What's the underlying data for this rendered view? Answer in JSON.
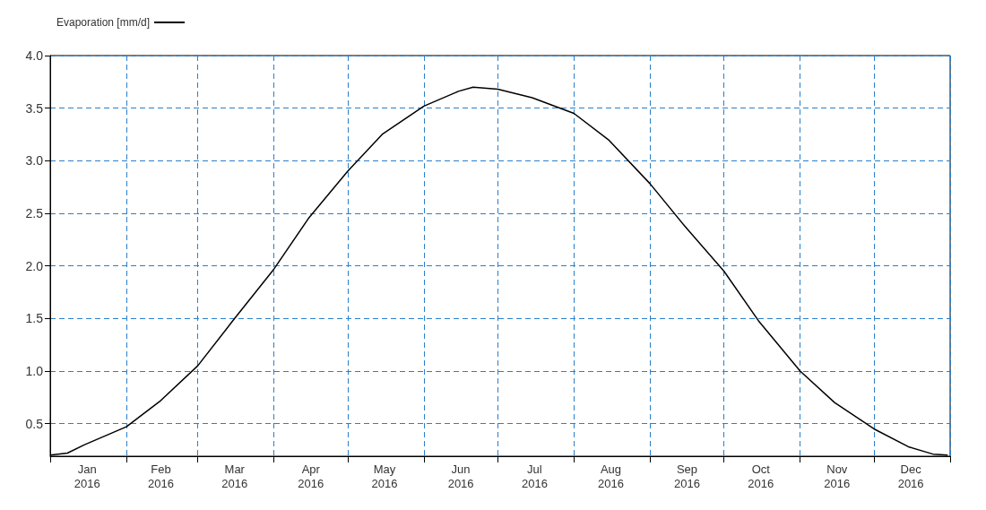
{
  "chart_data": {
    "type": "line",
    "x": [
      "2016-01-01",
      "2016-01-08",
      "2016-01-15",
      "2016-02-01",
      "2016-02-15",
      "2016-03-01",
      "2016-03-15",
      "2016-04-01",
      "2016-04-15",
      "2016-05-01",
      "2016-05-15",
      "2016-06-01",
      "2016-06-15",
      "2016-06-21",
      "2016-07-01",
      "2016-07-15",
      "2016-08-01",
      "2016-08-15",
      "2016-09-01",
      "2016-09-15",
      "2016-10-01",
      "2016-10-15",
      "2016-11-01",
      "2016-11-15",
      "2016-12-01",
      "2016-12-15",
      "2016-12-25",
      "2016-12-31"
    ],
    "series": [
      {
        "name": "Evaporation [mm/d]",
        "color": "#000000",
        "values": [
          0.2,
          0.22,
          0.3,
          0.47,
          0.72,
          1.05,
          1.47,
          1.97,
          2.45,
          2.9,
          3.25,
          3.52,
          3.66,
          3.7,
          3.68,
          3.6,
          3.45,
          3.2,
          2.78,
          2.38,
          1.95,
          1.48,
          1.0,
          0.7,
          0.45,
          0.28,
          0.21,
          0.2
        ]
      }
    ],
    "xlim": [
      "2016-01-01",
      "2017-01-01"
    ],
    "xticks": [
      {
        "value": "2016-01-01",
        "label": null
      },
      {
        "value": "2016-01-16",
        "label": "Jan\n2016"
      },
      {
        "value": "2016-02-01",
        "label": null
      },
      {
        "value": "2016-02-15",
        "label": "Feb\n2016"
      },
      {
        "value": "2016-03-01",
        "label": null
      },
      {
        "value": "2016-03-16",
        "label": "Mar\n2016"
      },
      {
        "value": "2016-04-01",
        "label": null
      },
      {
        "value": "2016-04-16",
        "label": "Apr\n2016"
      },
      {
        "value": "2016-05-01",
        "label": null
      },
      {
        "value": "2016-05-16",
        "label": "May\n2016"
      },
      {
        "value": "2016-06-01",
        "label": null
      },
      {
        "value": "2016-06-16",
        "label": "Jun\n2016"
      },
      {
        "value": "2016-07-01",
        "label": null
      },
      {
        "value": "2016-07-16",
        "label": "Jul\n2016"
      },
      {
        "value": "2016-08-01",
        "label": null
      },
      {
        "value": "2016-08-16",
        "label": "Aug\n2016"
      },
      {
        "value": "2016-09-01",
        "label": null
      },
      {
        "value": "2016-09-16",
        "label": "Sep\n2016"
      },
      {
        "value": "2016-10-01",
        "label": null
      },
      {
        "value": "2016-10-16",
        "label": "Oct\n2016"
      },
      {
        "value": "2016-11-01",
        "label": null
      },
      {
        "value": "2016-11-16",
        "label": "Nov\n2016"
      },
      {
        "value": "2016-12-01",
        "label": null
      },
      {
        "value": "2016-12-16",
        "label": "Dec\n2016"
      },
      {
        "value": "2017-01-01",
        "label": null
      }
    ],
    "ylim": [
      0.19,
      4.0
    ],
    "yticks": [
      {
        "value": 0.5,
        "label": "0.5"
      },
      {
        "value": 1.0,
        "label": "1.0"
      },
      {
        "value": 1.5,
        "label": "1.5"
      },
      {
        "value": 2.0,
        "label": "2.0"
      },
      {
        "value": 2.5,
        "label": "2.5"
      },
      {
        "value": 3.0,
        "label": "3.0"
      },
      {
        "value": 3.5,
        "label": "3.5"
      },
      {
        "value": 4.0,
        "label": "4.0"
      }
    ],
    "grid": true,
    "legend": "top left",
    "marker": "none",
    "line_style": "solid"
  }
}
